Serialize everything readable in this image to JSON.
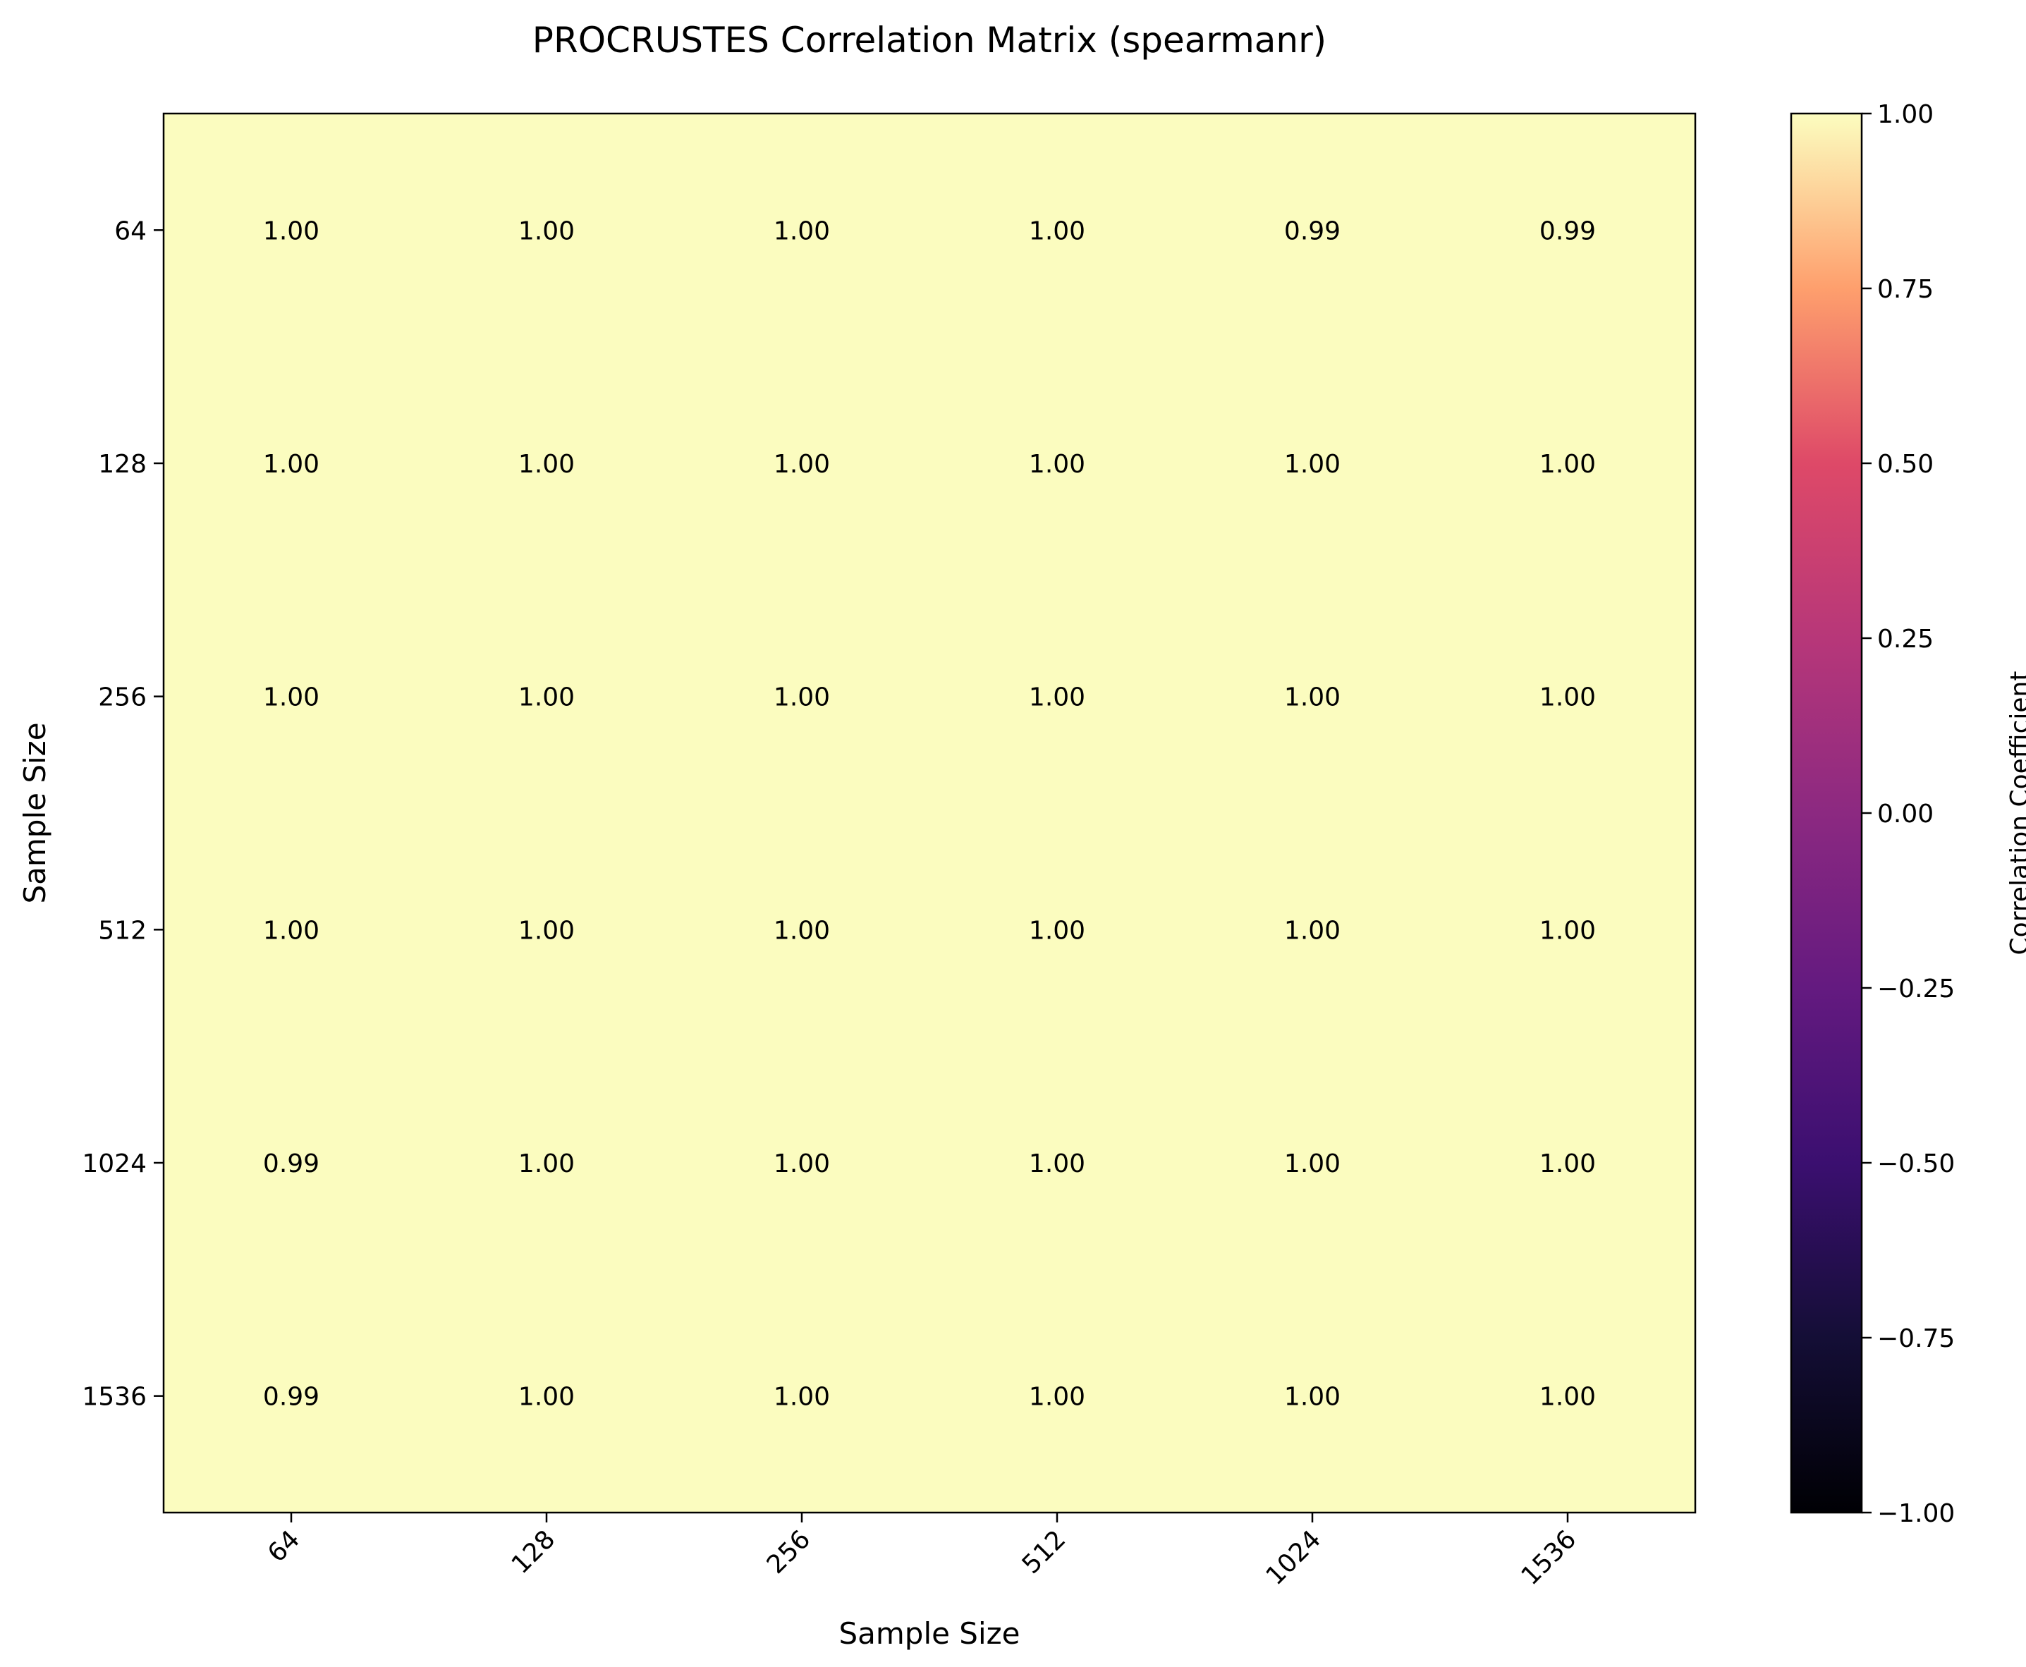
{
  "chart_data": {
    "type": "heatmap",
    "title": "PROCRUSTES Correlation Matrix (spearmanr)",
    "xlabel": "Sample Size",
    "ylabel": "Sample Size",
    "x_categories": [
      "64",
      "128",
      "256",
      "512",
      "1024",
      "1536"
    ],
    "y_categories": [
      "64",
      "128",
      "256",
      "512",
      "1024",
      "1536"
    ],
    "values": [
      [
        1.0,
        1.0,
        1.0,
        1.0,
        0.99,
        0.99
      ],
      [
        1.0,
        1.0,
        1.0,
        1.0,
        1.0,
        1.0
      ],
      [
        1.0,
        1.0,
        1.0,
        1.0,
        1.0,
        1.0
      ],
      [
        1.0,
        1.0,
        1.0,
        1.0,
        1.0,
        1.0
      ],
      [
        0.99,
        1.0,
        1.0,
        1.0,
        1.0,
        1.0
      ],
      [
        0.99,
        1.0,
        1.0,
        1.0,
        1.0,
        1.0
      ]
    ],
    "value_format": "0.00",
    "colormap": "magma",
    "colorbar": {
      "label": "Correlation Coefficient",
      "range": [
        -1.0,
        1.0
      ],
      "ticks": [
        "1.00",
        "0.75",
        "0.50",
        "0.25",
        "0.00",
        "−0.25",
        "−0.50",
        "−0.75",
        "−1.00"
      ]
    },
    "cell_color": "#fbfcbf"
  }
}
